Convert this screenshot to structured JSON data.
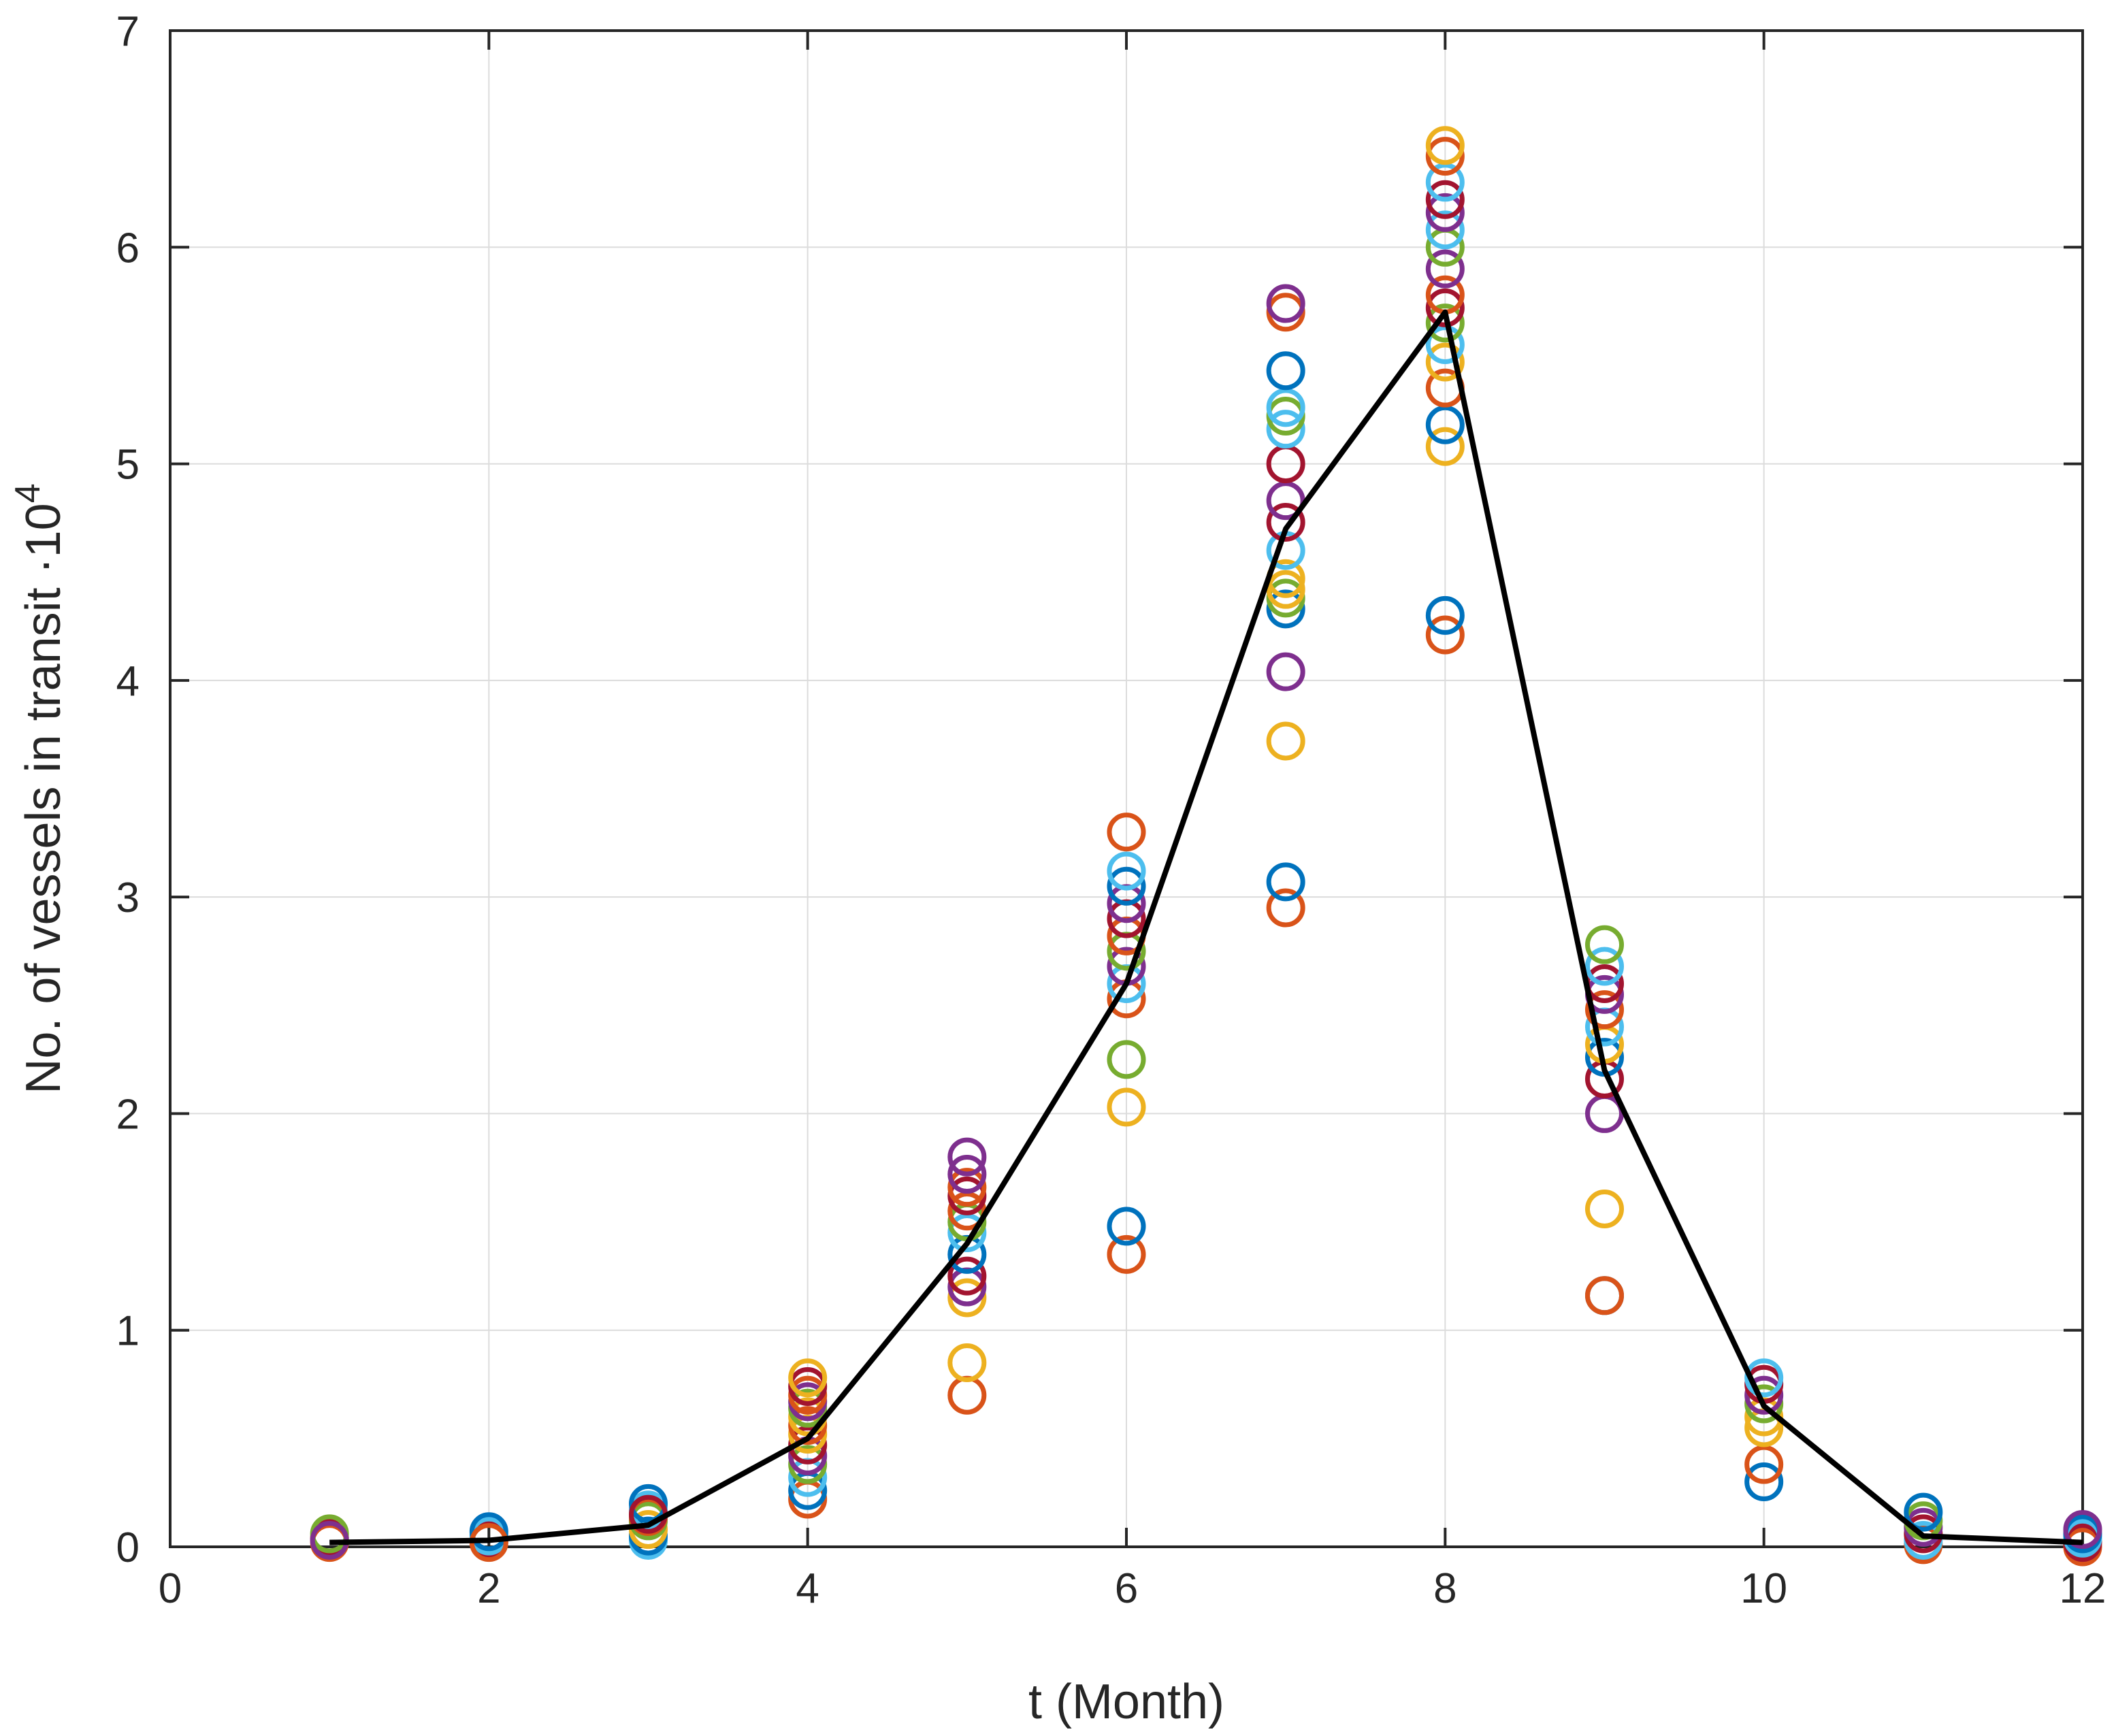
{
  "chart_data": {
    "type": "scatter",
    "title": "",
    "xlabel": "t (Month)",
    "ylabel": "No. of vessels in transit ·10",
    "ylabel_exponent": "4",
    "xlim": [
      0,
      12
    ],
    "ylim": [
      0,
      7
    ],
    "xticks": [
      "0",
      "2",
      "4",
      "6",
      "8",
      "10",
      "12"
    ],
    "yticks": [
      "0",
      "1",
      "2",
      "3",
      "4",
      "5",
      "6",
      "7"
    ],
    "grid": true,
    "palette": [
      "#0072BD",
      "#D95319",
      "#EDB120",
      "#7E2F8E",
      "#77AC30",
      "#4DBEEE",
      "#A2142F"
    ],
    "mean_line_color": "#000000",
    "mean_line": {
      "x": [
        1,
        2,
        3,
        4,
        5,
        6,
        7,
        8,
        9,
        10,
        11,
        12
      ],
      "y": [
        0.02,
        0.03,
        0.1,
        0.5,
        1.4,
        2.6,
        4.7,
        5.7,
        2.2,
        0.65,
        0.05,
        0.02
      ]
    },
    "scatter_points": [
      {
        "x": 1,
        "y": 0.02,
        "c": 1
      },
      {
        "x": 1,
        "y": 0.04,
        "c": 6
      },
      {
        "x": 1,
        "y": 0.06,
        "c": 4
      },
      {
        "x": 1,
        "y": 0.03,
        "c": 3
      },
      {
        "x": 2,
        "y": 0.03,
        "c": 6
      },
      {
        "x": 2,
        "y": 0.05,
        "c": 5
      },
      {
        "x": 2,
        "y": 0.07,
        "c": 0
      },
      {
        "x": 2,
        "y": 0.02,
        "c": 1
      },
      {
        "x": 3,
        "y": 0.03,
        "c": 5
      },
      {
        "x": 3,
        "y": 0.05,
        "c": 0
      },
      {
        "x": 3,
        "y": 0.08,
        "c": 2
      },
      {
        "x": 3,
        "y": 0.12,
        "c": 4
      },
      {
        "x": 3,
        "y": 0.14,
        "c": 1
      },
      {
        "x": 3,
        "y": 0.17,
        "c": 5
      },
      {
        "x": 3,
        "y": 0.2,
        "c": 0
      },
      {
        "x": 3,
        "y": 0.15,
        "c": 6
      },
      {
        "x": 4,
        "y": 0.22,
        "c": 1
      },
      {
        "x": 4,
        "y": 0.26,
        "c": 0
      },
      {
        "x": 4,
        "y": 0.32,
        "c": 5
      },
      {
        "x": 4,
        "y": 0.38,
        "c": 4
      },
      {
        "x": 4,
        "y": 0.42,
        "c": 3
      },
      {
        "x": 4,
        "y": 0.47,
        "c": 6
      },
      {
        "x": 4,
        "y": 0.52,
        "c": 2
      },
      {
        "x": 4,
        "y": 0.56,
        "c": 1
      },
      {
        "x": 4,
        "y": 0.6,
        "c": 2
      },
      {
        "x": 4,
        "y": 0.64,
        "c": 4
      },
      {
        "x": 4,
        "y": 0.67,
        "c": 3
      },
      {
        "x": 4,
        "y": 0.7,
        "c": 1
      },
      {
        "x": 4,
        "y": 0.74,
        "c": 6
      },
      {
        "x": 4,
        "y": 0.78,
        "c": 2
      },
      {
        "x": 5,
        "y": 0.7,
        "c": 1
      },
      {
        "x": 5,
        "y": 0.85,
        "c": 2
      },
      {
        "x": 5,
        "y": 1.15,
        "c": 2
      },
      {
        "x": 5,
        "y": 1.2,
        "c": 3
      },
      {
        "x": 5,
        "y": 1.25,
        "c": 6
      },
      {
        "x": 5,
        "y": 1.35,
        "c": 0
      },
      {
        "x": 5,
        "y": 1.45,
        "c": 5
      },
      {
        "x": 5,
        "y": 1.5,
        "c": 4
      },
      {
        "x": 5,
        "y": 1.55,
        "c": 1
      },
      {
        "x": 5,
        "y": 1.62,
        "c": 6
      },
      {
        "x": 5,
        "y": 1.66,
        "c": 1
      },
      {
        "x": 5,
        "y": 1.72,
        "c": 3
      },
      {
        "x": 5,
        "y": 1.8,
        "c": 3
      },
      {
        "x": 6,
        "y": 1.35,
        "c": 1
      },
      {
        "x": 6,
        "y": 1.48,
        "c": 0
      },
      {
        "x": 6,
        "y": 2.03,
        "c": 2
      },
      {
        "x": 6,
        "y": 2.25,
        "c": 4
      },
      {
        "x": 6,
        "y": 2.53,
        "c": 1
      },
      {
        "x": 6,
        "y": 2.6,
        "c": 5
      },
      {
        "x": 6,
        "y": 2.68,
        "c": 3
      },
      {
        "x": 6,
        "y": 2.75,
        "c": 4
      },
      {
        "x": 6,
        "y": 2.82,
        "c": 1
      },
      {
        "x": 6,
        "y": 2.9,
        "c": 6
      },
      {
        "x": 6,
        "y": 2.97,
        "c": 3
      },
      {
        "x": 6,
        "y": 3.05,
        "c": 0
      },
      {
        "x": 6,
        "y": 3.12,
        "c": 5
      },
      {
        "x": 6,
        "y": 3.3,
        "c": 1
      },
      {
        "x": 7,
        "y": 2.95,
        "c": 1
      },
      {
        "x": 7,
        "y": 3.07,
        "c": 0
      },
      {
        "x": 7,
        "y": 3.72,
        "c": 2
      },
      {
        "x": 7,
        "y": 4.04,
        "c": 3
      },
      {
        "x": 7,
        "y": 4.33,
        "c": 0
      },
      {
        "x": 7,
        "y": 4.38,
        "c": 4
      },
      {
        "x": 7,
        "y": 4.42,
        "c": 2
      },
      {
        "x": 7,
        "y": 4.47,
        "c": 2
      },
      {
        "x": 7,
        "y": 4.6,
        "c": 5
      },
      {
        "x": 7,
        "y": 4.73,
        "c": 6
      },
      {
        "x": 7,
        "y": 4.83,
        "c": 3
      },
      {
        "x": 7,
        "y": 5.0,
        "c": 6
      },
      {
        "x": 7,
        "y": 5.16,
        "c": 5
      },
      {
        "x": 7,
        "y": 5.22,
        "c": 4
      },
      {
        "x": 7,
        "y": 5.26,
        "c": 5
      },
      {
        "x": 7,
        "y": 5.43,
        "c": 0
      },
      {
        "x": 7,
        "y": 5.7,
        "c": 1
      },
      {
        "x": 7,
        "y": 5.74,
        "c": 3
      },
      {
        "x": 8,
        "y": 4.21,
        "c": 1
      },
      {
        "x": 8,
        "y": 4.3,
        "c": 0
      },
      {
        "x": 8,
        "y": 5.08,
        "c": 2
      },
      {
        "x": 8,
        "y": 5.18,
        "c": 0
      },
      {
        "x": 8,
        "y": 5.35,
        "c": 1
      },
      {
        "x": 8,
        "y": 5.47,
        "c": 2
      },
      {
        "x": 8,
        "y": 5.55,
        "c": 5
      },
      {
        "x": 8,
        "y": 5.65,
        "c": 4
      },
      {
        "x": 8,
        "y": 5.72,
        "c": 6
      },
      {
        "x": 8,
        "y": 5.78,
        "c": 1
      },
      {
        "x": 8,
        "y": 5.9,
        "c": 3
      },
      {
        "x": 8,
        "y": 6.0,
        "c": 4
      },
      {
        "x": 8,
        "y": 6.08,
        "c": 5
      },
      {
        "x": 8,
        "y": 6.16,
        "c": 3
      },
      {
        "x": 8,
        "y": 6.22,
        "c": 6
      },
      {
        "x": 8,
        "y": 6.3,
        "c": 5
      },
      {
        "x": 8,
        "y": 6.42,
        "c": 1
      },
      {
        "x": 8,
        "y": 6.47,
        "c": 2
      },
      {
        "x": 9,
        "y": 1.16,
        "c": 0
      },
      {
        "x": 9,
        "y": 1.16,
        "c": 1
      },
      {
        "x": 9,
        "y": 1.56,
        "c": 2
      },
      {
        "x": 9,
        "y": 2.0,
        "c": 3
      },
      {
        "x": 9,
        "y": 2.16,
        "c": 6
      },
      {
        "x": 9,
        "y": 2.26,
        "c": 0
      },
      {
        "x": 9,
        "y": 2.32,
        "c": 2
      },
      {
        "x": 9,
        "y": 2.4,
        "c": 5
      },
      {
        "x": 9,
        "y": 2.48,
        "c": 1
      },
      {
        "x": 9,
        "y": 2.55,
        "c": 3
      },
      {
        "x": 9,
        "y": 2.6,
        "c": 6
      },
      {
        "x": 9,
        "y": 2.68,
        "c": 5
      },
      {
        "x": 9,
        "y": 2.78,
        "c": 4
      },
      {
        "x": 10,
        "y": 0.3,
        "c": 0
      },
      {
        "x": 10,
        "y": 0.38,
        "c": 1
      },
      {
        "x": 10,
        "y": 0.55,
        "c": 2
      },
      {
        "x": 10,
        "y": 0.6,
        "c": 2
      },
      {
        "x": 10,
        "y": 0.66,
        "c": 4
      },
      {
        "x": 10,
        "y": 0.7,
        "c": 3
      },
      {
        "x": 10,
        "y": 0.75,
        "c": 6
      },
      {
        "x": 10,
        "y": 0.78,
        "c": 5
      },
      {
        "x": 11,
        "y": 0.01,
        "c": 1
      },
      {
        "x": 11,
        "y": 0.03,
        "c": 5
      },
      {
        "x": 11,
        "y": 0.06,
        "c": 6
      },
      {
        "x": 11,
        "y": 0.09,
        "c": 3
      },
      {
        "x": 11,
        "y": 0.12,
        "c": 4
      },
      {
        "x": 11,
        "y": 0.16,
        "c": 0
      },
      {
        "x": 12,
        "y": 0.0,
        "c": 1
      },
      {
        "x": 12,
        "y": 0.02,
        "c": 6
      },
      {
        "x": 12,
        "y": 0.04,
        "c": 5
      },
      {
        "x": 12,
        "y": 0.06,
        "c": 0
      },
      {
        "x": 12,
        "y": 0.08,
        "c": 3
      }
    ]
  }
}
